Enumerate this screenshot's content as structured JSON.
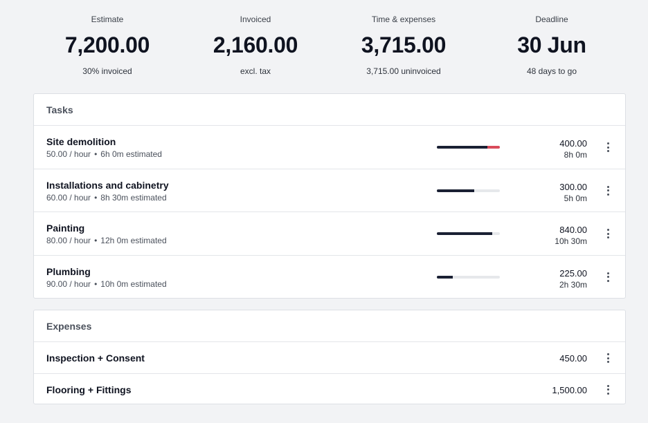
{
  "stats": [
    {
      "label": "Estimate",
      "value": "7,200.00",
      "sub": "30% invoiced"
    },
    {
      "label": "Invoiced",
      "value": "2,160.00",
      "sub": "excl. tax"
    },
    {
      "label": "Time & expenses",
      "value": "3,715.00",
      "sub": "3,715.00 uninvoiced"
    },
    {
      "label": "Deadline",
      "value": "30 Jun",
      "sub": "48 days to go"
    }
  ],
  "tasks": {
    "title": "Tasks",
    "separator": "•",
    "items": [
      {
        "name": "Site demolition",
        "rate": "50.00 / hour",
        "estimate": "6h 0m estimated",
        "amount": "400.00",
        "time": "8h 0m",
        "progress_pct": 100,
        "over_pct": 25
      },
      {
        "name": "Installations and cabinetry",
        "rate": "60.00 / hour",
        "estimate": "8h 30m estimated",
        "amount": "300.00",
        "time": "5h 0m",
        "progress_pct": 59,
        "over_pct": 0
      },
      {
        "name": "Painting",
        "rate": "80.00 / hour",
        "estimate": "12h 0m estimated",
        "amount": "840.00",
        "time": "10h 30m",
        "progress_pct": 88,
        "over_pct": 0
      },
      {
        "name": "Plumbing",
        "rate": "90.00 / hour",
        "estimate": "10h 0m estimated",
        "amount": "225.00",
        "time": "2h 30m",
        "progress_pct": 25,
        "over_pct": 0
      }
    ]
  },
  "expenses": {
    "title": "Expenses",
    "items": [
      {
        "name": "Inspection + Consent",
        "amount": "450.00"
      },
      {
        "name": "Flooring + Fittings",
        "amount": "1,500.00"
      }
    ]
  },
  "colors": {
    "progress": "#1a2033",
    "overrun": "#d94b5b",
    "track": "#e6e8eb"
  },
  "icons": {
    "row_menu": "kebab-menu-icon"
  }
}
